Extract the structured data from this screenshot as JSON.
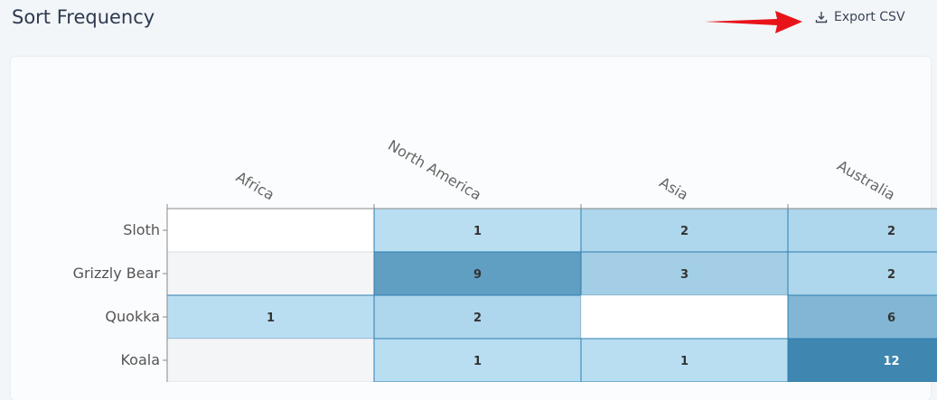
{
  "header": {
    "title": "Sort Frequency",
    "export_label": "Export CSV"
  },
  "chart_data": {
    "type": "heatmap",
    "rows": [
      "Sloth",
      "Grizzly Bear",
      "Quokka",
      "Koala"
    ],
    "columns": [
      "Africa",
      "North America",
      "Asia",
      "Australia"
    ],
    "values": [
      [
        null,
        1,
        2,
        2
      ],
      [
        null,
        9,
        3,
        2
      ],
      [
        1,
        2,
        null,
        6
      ],
      [
        null,
        1,
        1,
        12
      ]
    ],
    "color_range": [
      "#c4e6f8",
      "#3f86b0"
    ]
  }
}
